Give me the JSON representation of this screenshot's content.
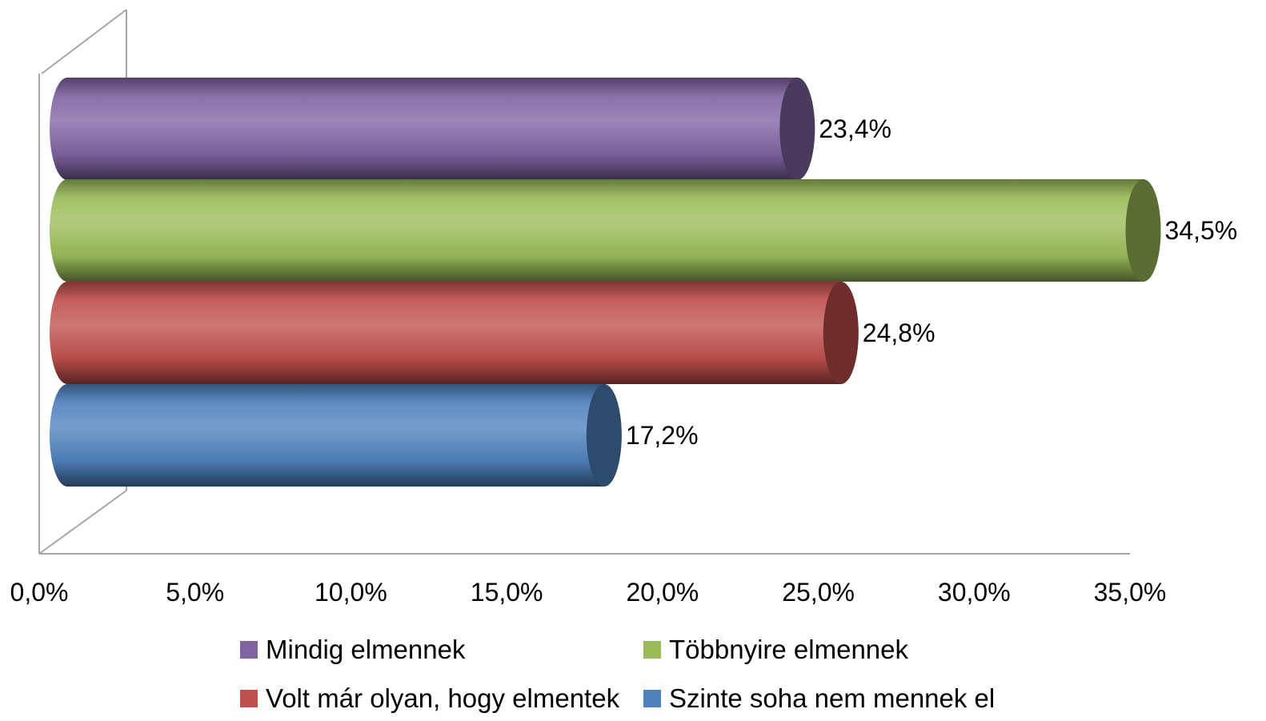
{
  "chart_data": {
    "type": "bar",
    "orientation": "horizontal",
    "style": "3d-cylinder",
    "series": [
      {
        "name": "Mindig elmennek",
        "value": 23.4,
        "label": "23,4%",
        "color": "#8064A2"
      },
      {
        "name": "Többnyire elmennek",
        "value": 34.5,
        "label": "34,5%",
        "color": "#9BBB59"
      },
      {
        "name": "Volt már olyan, hogy elmentek",
        "value": 24.8,
        "label": "24,8%",
        "color": "#C0504D"
      },
      {
        "name": "Szinte soha nem mennek el",
        "value": 17.2,
        "label": "17,2%",
        "color": "#4F81BD"
      }
    ],
    "xlim": [
      0,
      35
    ],
    "x_ticks": [
      {
        "value": 0,
        "label": "0,0%"
      },
      {
        "value": 5,
        "label": "5,0%"
      },
      {
        "value": 10,
        "label": "10,0%"
      },
      {
        "value": 15,
        "label": "15,0%"
      },
      {
        "value": 20,
        "label": "20,0%"
      },
      {
        "value": 25,
        "label": "25,0%"
      },
      {
        "value": 30,
        "label": "30,0%"
      },
      {
        "value": 35,
        "label": "35,0%"
      }
    ],
    "grid": false,
    "legend_position": "bottom"
  }
}
